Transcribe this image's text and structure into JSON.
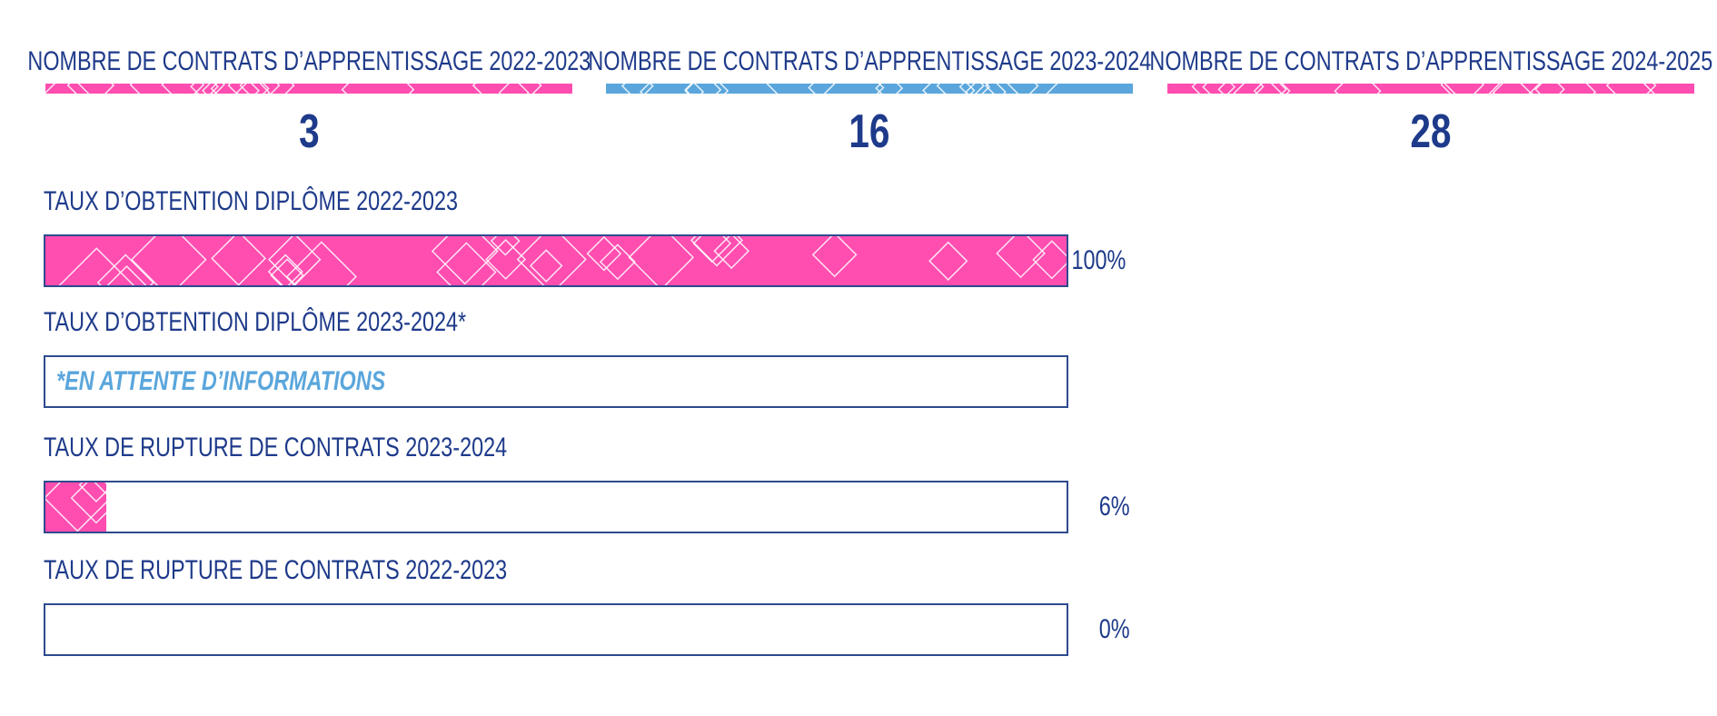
{
  "colors": {
    "navy": "#1e3a8a",
    "pink": "#ff4db0",
    "blue": "#5aa6dc",
    "border": "#2e4a8e"
  },
  "stats": [
    {
      "title": "NOMBRE DE CONTRATS D’APPRENTISSAGE 2022-2023",
      "value": "3",
      "strip_color": "#ff4db0"
    },
    {
      "title": "NOMBRE DE CONTRATS D’APPRENTISSAGE 2023-2024",
      "value": "16",
      "strip_color": "#5aa6dc"
    },
    {
      "title": "NOMBRE DE CONTRATS D’APPRENTISSAGE 2024-2025",
      "value": "28",
      "strip_color": "#ff4db0"
    }
  ],
  "rates": [
    {
      "label": "TAUX D’OBTENTION DIPLÔME 2022-2023",
      "value": 100,
      "display": "100%",
      "pending": ""
    },
    {
      "label": "TAUX D’OBTENTION DIPLÔME 2023-2024*",
      "value": null,
      "display": "",
      "pending": "*EN ATTENTE D’INFORMATIONS"
    },
    {
      "label": "TAUX DE RUPTURE DE CONTRATS 2023-2024",
      "value": 6,
      "display": "6%",
      "pending": ""
    },
    {
      "label": "TAUX DE RUPTURE DE CONTRATS 2022-2023",
      "value": 0,
      "display": "0%",
      "pending": ""
    }
  ],
  "chart_data": {
    "type": "bar",
    "categories": [
      "TAUX D’OBTENTION DIPLÔME 2022-2023",
      "TAUX D’OBTENTION DIPLÔME 2023-2024*",
      "TAUX DE RUPTURE DE CONTRATS 2023-2024",
      "TAUX DE RUPTURE DE CONTRATS 2022-2023"
    ],
    "values": [
      100,
      null,
      6,
      0
    ],
    "ylim": [
      0,
      100
    ],
    "orientation": "horizontal",
    "grid": false
  }
}
